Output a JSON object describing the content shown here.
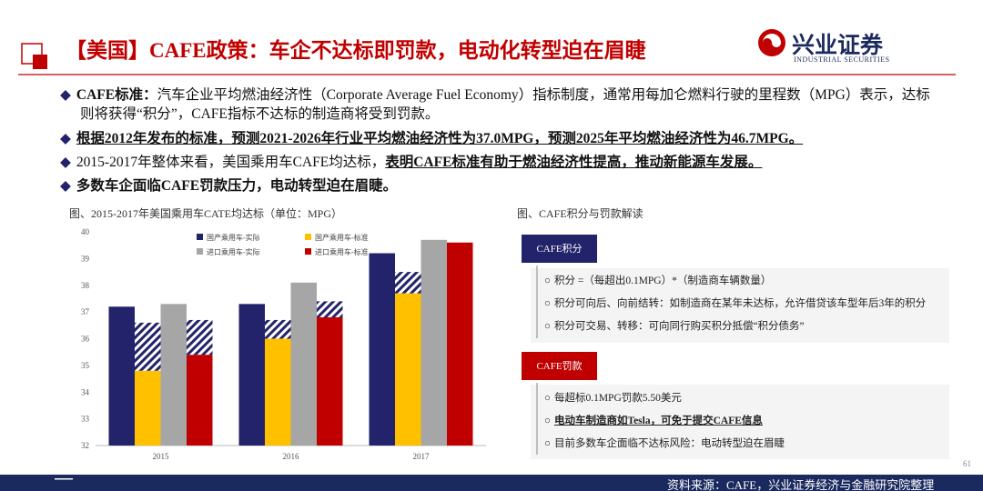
{
  "header": {
    "title": "【美国】CAFE政策：车企不达标即罚款，电动化转型迫在眉睫",
    "logo_text": "兴业证券",
    "logo_sub": "INDUSTRIAL SECURITIES"
  },
  "bullets": [
    [
      {
        "text": "CAFE标准：",
        "bold": true
      },
      {
        "text": "汽车企业平均燃油经济性（Corporate Average Fuel Economy）指标制度，通常用每加仑燃料行驶的里程数（MPG）表示，达标则将获得“积分”，CAFE指标不达标的制造商将受到罚款。"
      }
    ],
    [
      {
        "text": "根据2012年发布的标准，预测2021-2026年行业平均燃油经济性为37.0MPG，预测2025年平均燃油经济性为46.7MPG。",
        "bold": true,
        "underline": true
      }
    ],
    [
      {
        "text": "2015-2017年整体来看，美国乘用车CAFE均达标，"
      },
      {
        "text": "表明CAFE标准有助于燃油经济性提高，推动新能源车发展。",
        "bold": true,
        "underline": true
      }
    ],
    [
      {
        "text": "多数车企面临CAFE罚款压力，电动转型迫在眉睫。",
        "bold": true
      }
    ]
  ],
  "chart_data": {
    "type": "bar",
    "title": "图、2015-2017年美国乘用车CATE均达标（单位：MPG）",
    "categories": [
      "2015",
      "2016",
      "2017"
    ],
    "series": [
      {
        "name": "国产乘用车-实际",
        "color": "#23236b",
        "values": [
          37.2,
          37.3,
          39.2
        ]
      },
      {
        "name": "国产乘用车-标准",
        "color": "#ffc000",
        "values": [
          34.8,
          36.0,
          37.7
        ],
        "hatch": [
          1.8,
          0.7,
          0.8
        ]
      },
      {
        "name": "进口乘用车-实际",
        "color": "#a6a6a6",
        "values": [
          37.3,
          38.1,
          39.7
        ]
      },
      {
        "name": "进口乘用车-标准",
        "color": "#c00000",
        "values": [
          35.4,
          36.8,
          39.6
        ],
        "hatch": [
          1.3,
          0.6,
          null
        ]
      }
    ],
    "hatch_color": "#23236b",
    "ylim": [
      32,
      40
    ],
    "yticks": [
      32,
      33,
      34,
      35,
      36,
      37,
      38,
      39,
      40
    ],
    "grid": false
  },
  "panel": {
    "title": "图、CAFE积分与罚款解读",
    "groups": [
      {
        "label": "CAFE积分",
        "color": "#23236b",
        "items": [
          {
            "text": "积分 =（每超出0.1MPG）*（制造商车辆数量）"
          },
          {
            "text": "积分可向后、向前结转：如制造商在某年未达标，允许借贷该车型年后3年的积分"
          },
          {
            "text": "积分可交易、转移：可向同行购买积分抵偿“积分债务”"
          }
        ]
      },
      {
        "label": "CAFE罚款",
        "color": "#c00000",
        "items": [
          {
            "text": "每超标0.1MPG罚款5.50美元"
          },
          {
            "text": "电动车制造商如Tesla，可免于提交CAFE信息",
            "bold": true,
            "underline": true
          },
          {
            "text": "目前多数车企面临不达标风险：电动转型迫在眉睫"
          }
        ]
      }
    ]
  },
  "footer": {
    "source": "资料来源：CAFE，兴业证券经济与金融研究院整理",
    "page": "61"
  }
}
